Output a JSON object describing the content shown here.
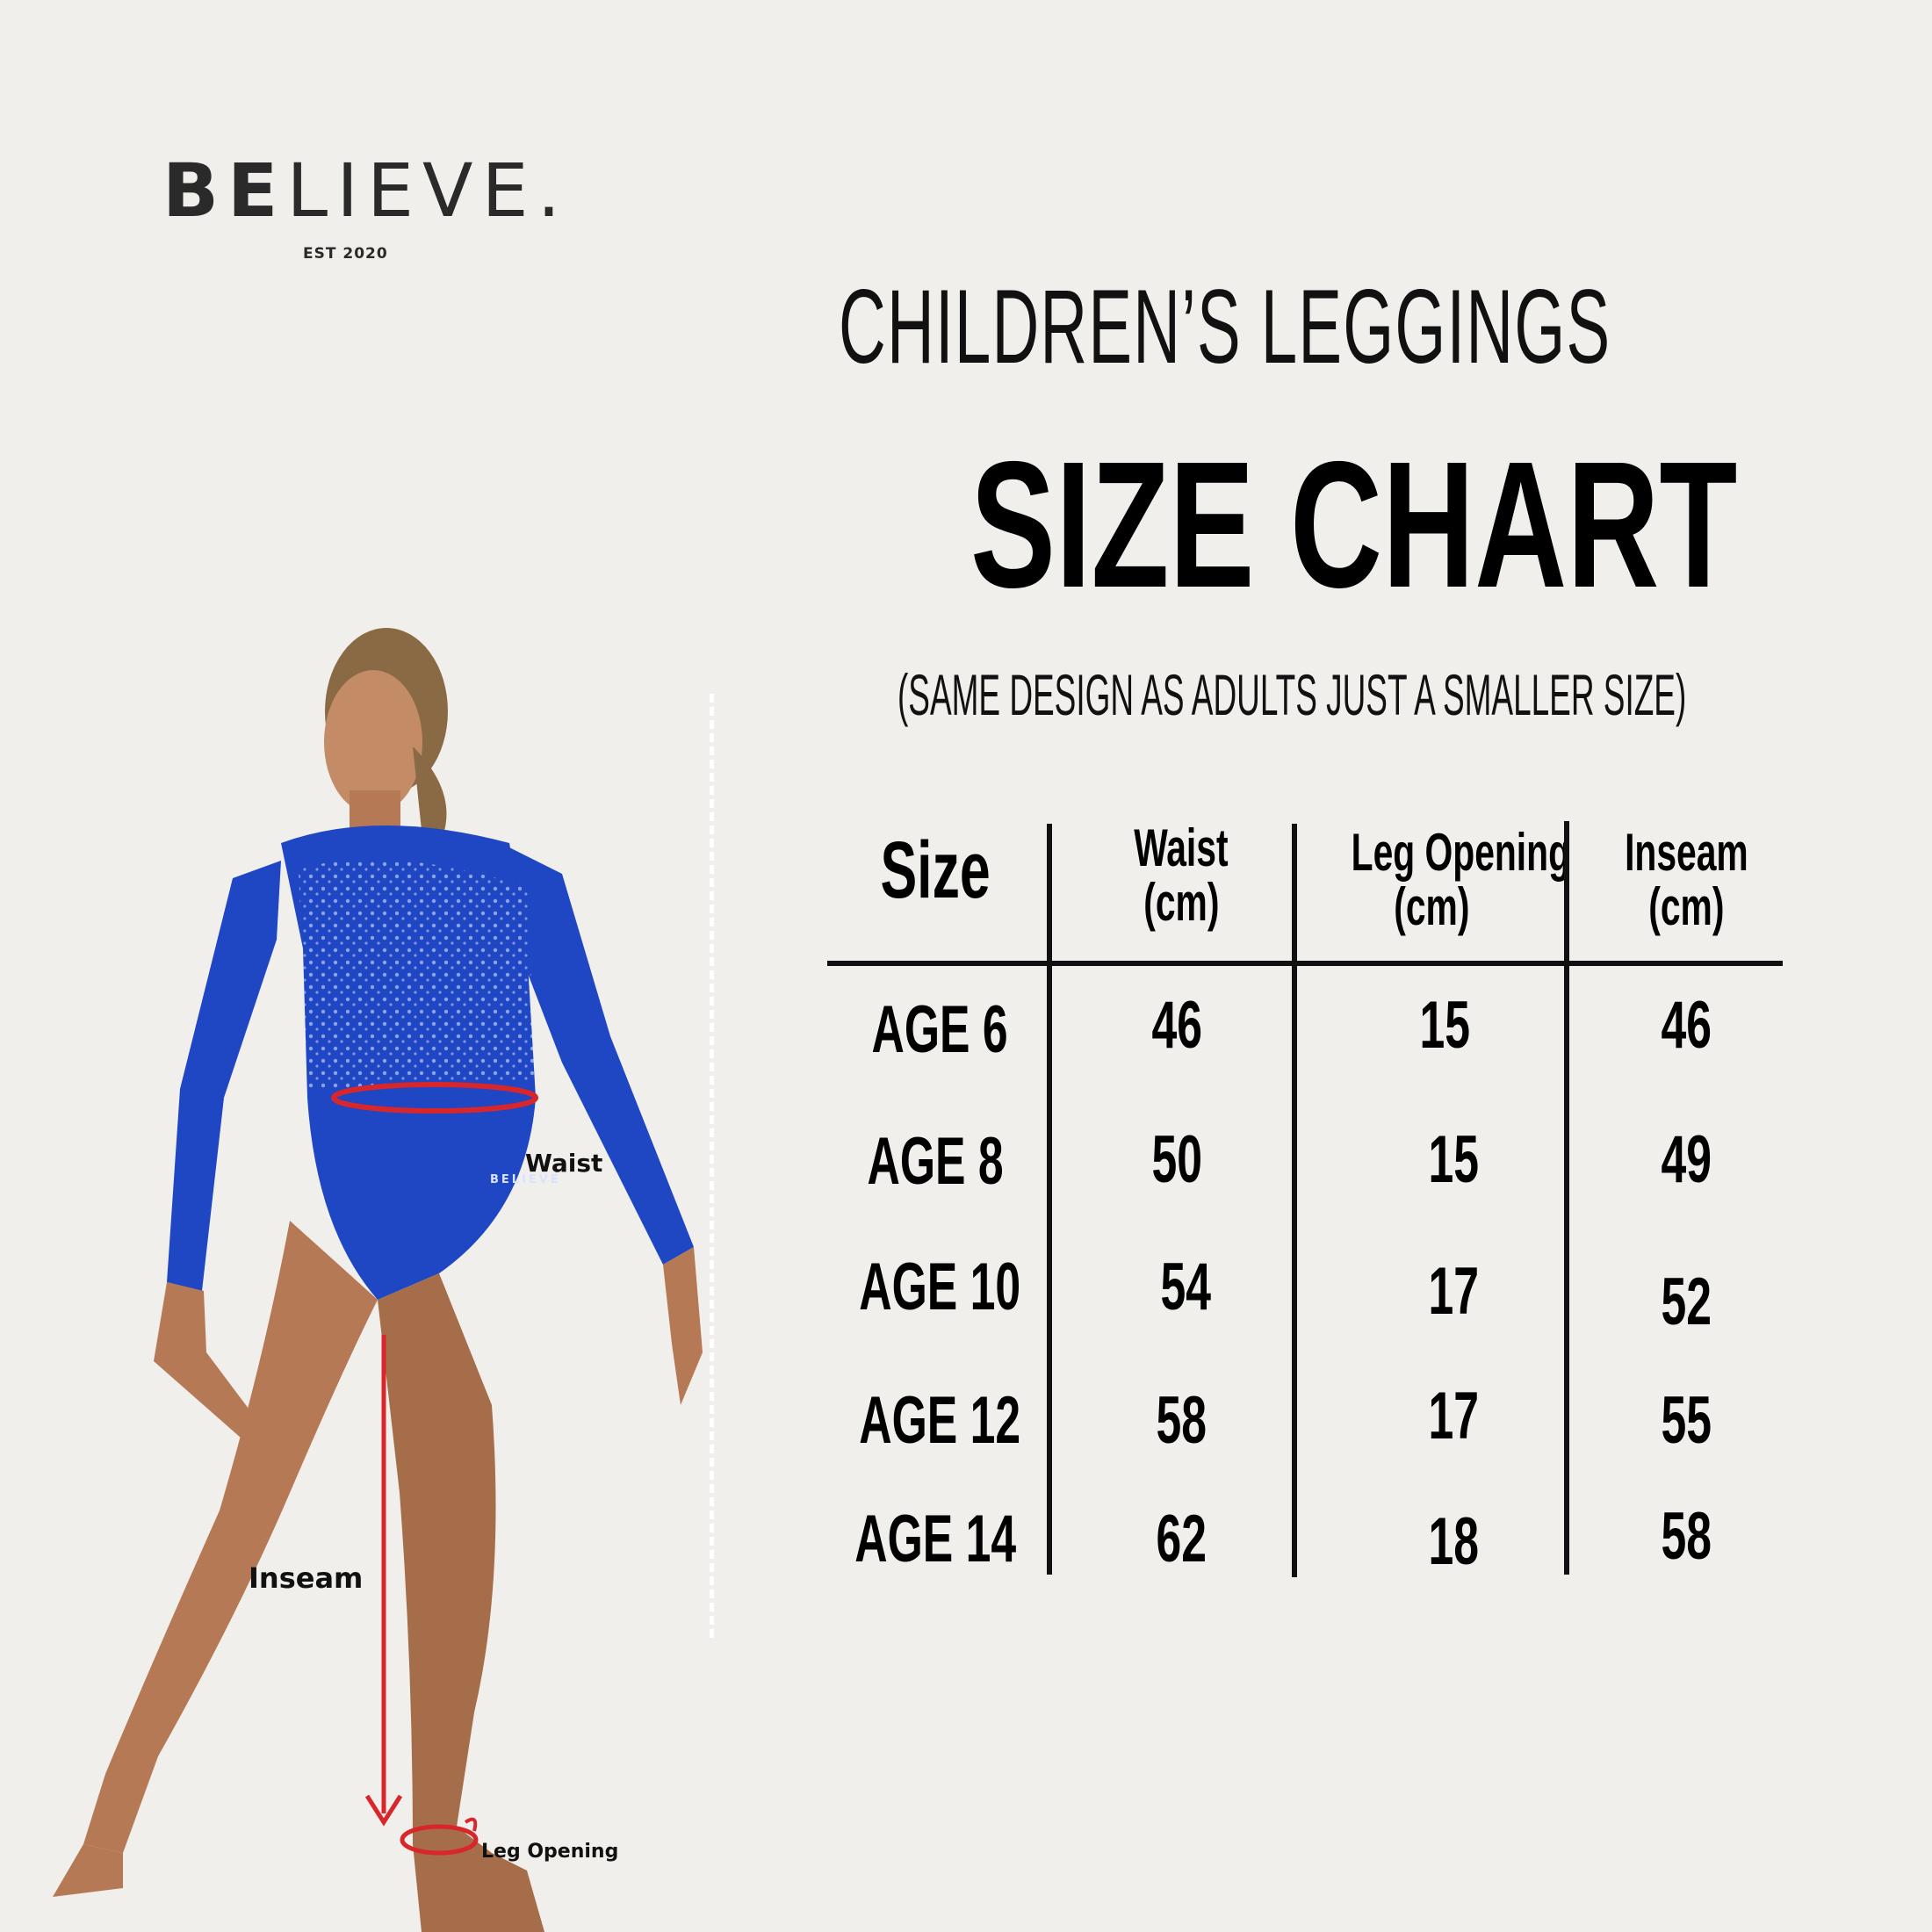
{
  "brand": {
    "logo_bold": "BE",
    "logo_light": "LIEVE.",
    "established": "EST 2020"
  },
  "heading": {
    "line1": "CHILDREN’S LEGGINGS",
    "line2": "SIZE CHART",
    "subtitle": "(SAME DESIGN AS ADULTS JUST A SMALLER SIZE)"
  },
  "table": {
    "columns": [
      {
        "line1": "Size",
        "line2": ""
      },
      {
        "line1": "Waist",
        "line2": "(cm)"
      },
      {
        "line1": "Leg Opening",
        "line2": "(cm)"
      },
      {
        "line1": "Inseam",
        "line2": "(cm)"
      }
    ],
    "rows": [
      {
        "size": "AGE 6",
        "waist": "46",
        "leg_opening": "15",
        "inseam": "46"
      },
      {
        "size": "AGE 8",
        "waist": "50",
        "leg_opening": "15",
        "inseam": "49"
      },
      {
        "size": "AGE 10",
        "waist": "54",
        "leg_opening": "17",
        "inseam": "52"
      },
      {
        "size": "AGE 12",
        "waist": "58",
        "leg_opening": "17",
        "inseam": "55"
      },
      {
        "size": "AGE 14",
        "waist": "62",
        "leg_opening": "18",
        "inseam": "58"
      }
    ]
  },
  "figure": {
    "labels": {
      "waist": "Waist",
      "inseam": "Inseam",
      "leg_opening": "Leg Opening",
      "garment_mark": "BELIEVE"
    },
    "colors": {
      "garment": "#1f47c4",
      "skin": "#b57a55",
      "measure": "#d8262b"
    }
  }
}
